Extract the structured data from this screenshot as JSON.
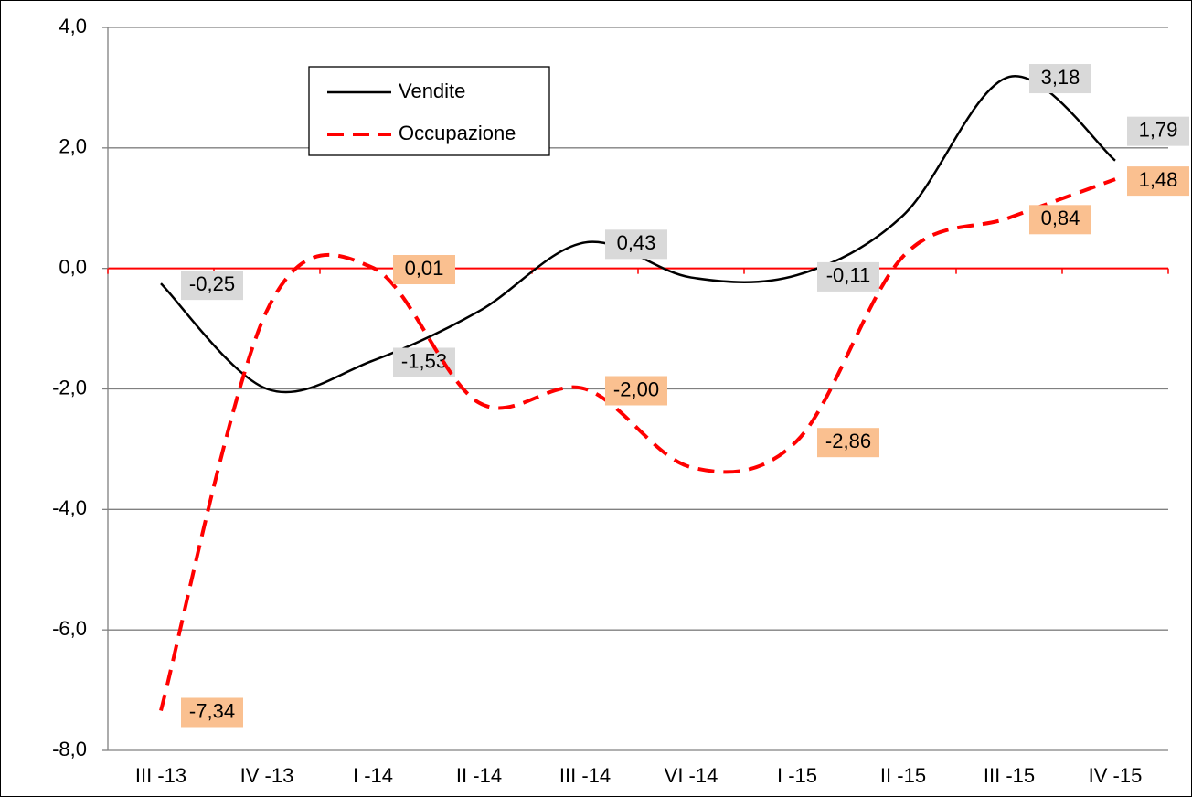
{
  "chart_data": {
    "type": "line",
    "categories": [
      "III -13",
      "IV -13",
      "I -14",
      "II -14",
      "III -14",
      "VI -14",
      "I -15",
      "II -15",
      "III -15",
      "IV -15"
    ],
    "series": [
      {
        "name": "Vendite",
        "color": "#000000",
        "dash": false,
        "label_color": "#d9d9d9",
        "values": [
          -0.25,
          -2.0,
          -1.53,
          -0.71,
          0.43,
          -0.15,
          -0.11,
          0.88,
          3.18,
          1.79
        ],
        "value_labels": [
          "-0,25",
          null,
          "-1,53",
          null,
          "0,43",
          null,
          "-0,11",
          null,
          "3,18",
          "1,79"
        ]
      },
      {
        "name": "Occupazione",
        "color": "#ff0000",
        "dash": true,
        "label_color": "#fac090",
        "values": [
          -7.34,
          -0.7,
          0.01,
          -2.23,
          -2.0,
          -3.3,
          -2.86,
          0.2,
          0.84,
          1.48
        ],
        "value_labels": [
          "-7,34",
          null,
          "0,01",
          null,
          "-2,00",
          null,
          "-2,86",
          null,
          "0,84",
          "1,48"
        ]
      }
    ],
    "ylim": [
      -8,
      4
    ],
    "yticks": [
      {
        "value": -8,
        "label": "-8,0"
      },
      {
        "value": -6,
        "label": "-6,0"
      },
      {
        "value": -4,
        "label": "-4,0"
      },
      {
        "value": -2,
        "label": "-2,0"
      },
      {
        "value": 0,
        "label": "0,0"
      },
      {
        "value": 2,
        "label": "2,0"
      },
      {
        "value": 4,
        "label": "4,0"
      }
    ],
    "grid": true,
    "zero_line_color": "#ff0000",
    "legend": "upper left"
  }
}
